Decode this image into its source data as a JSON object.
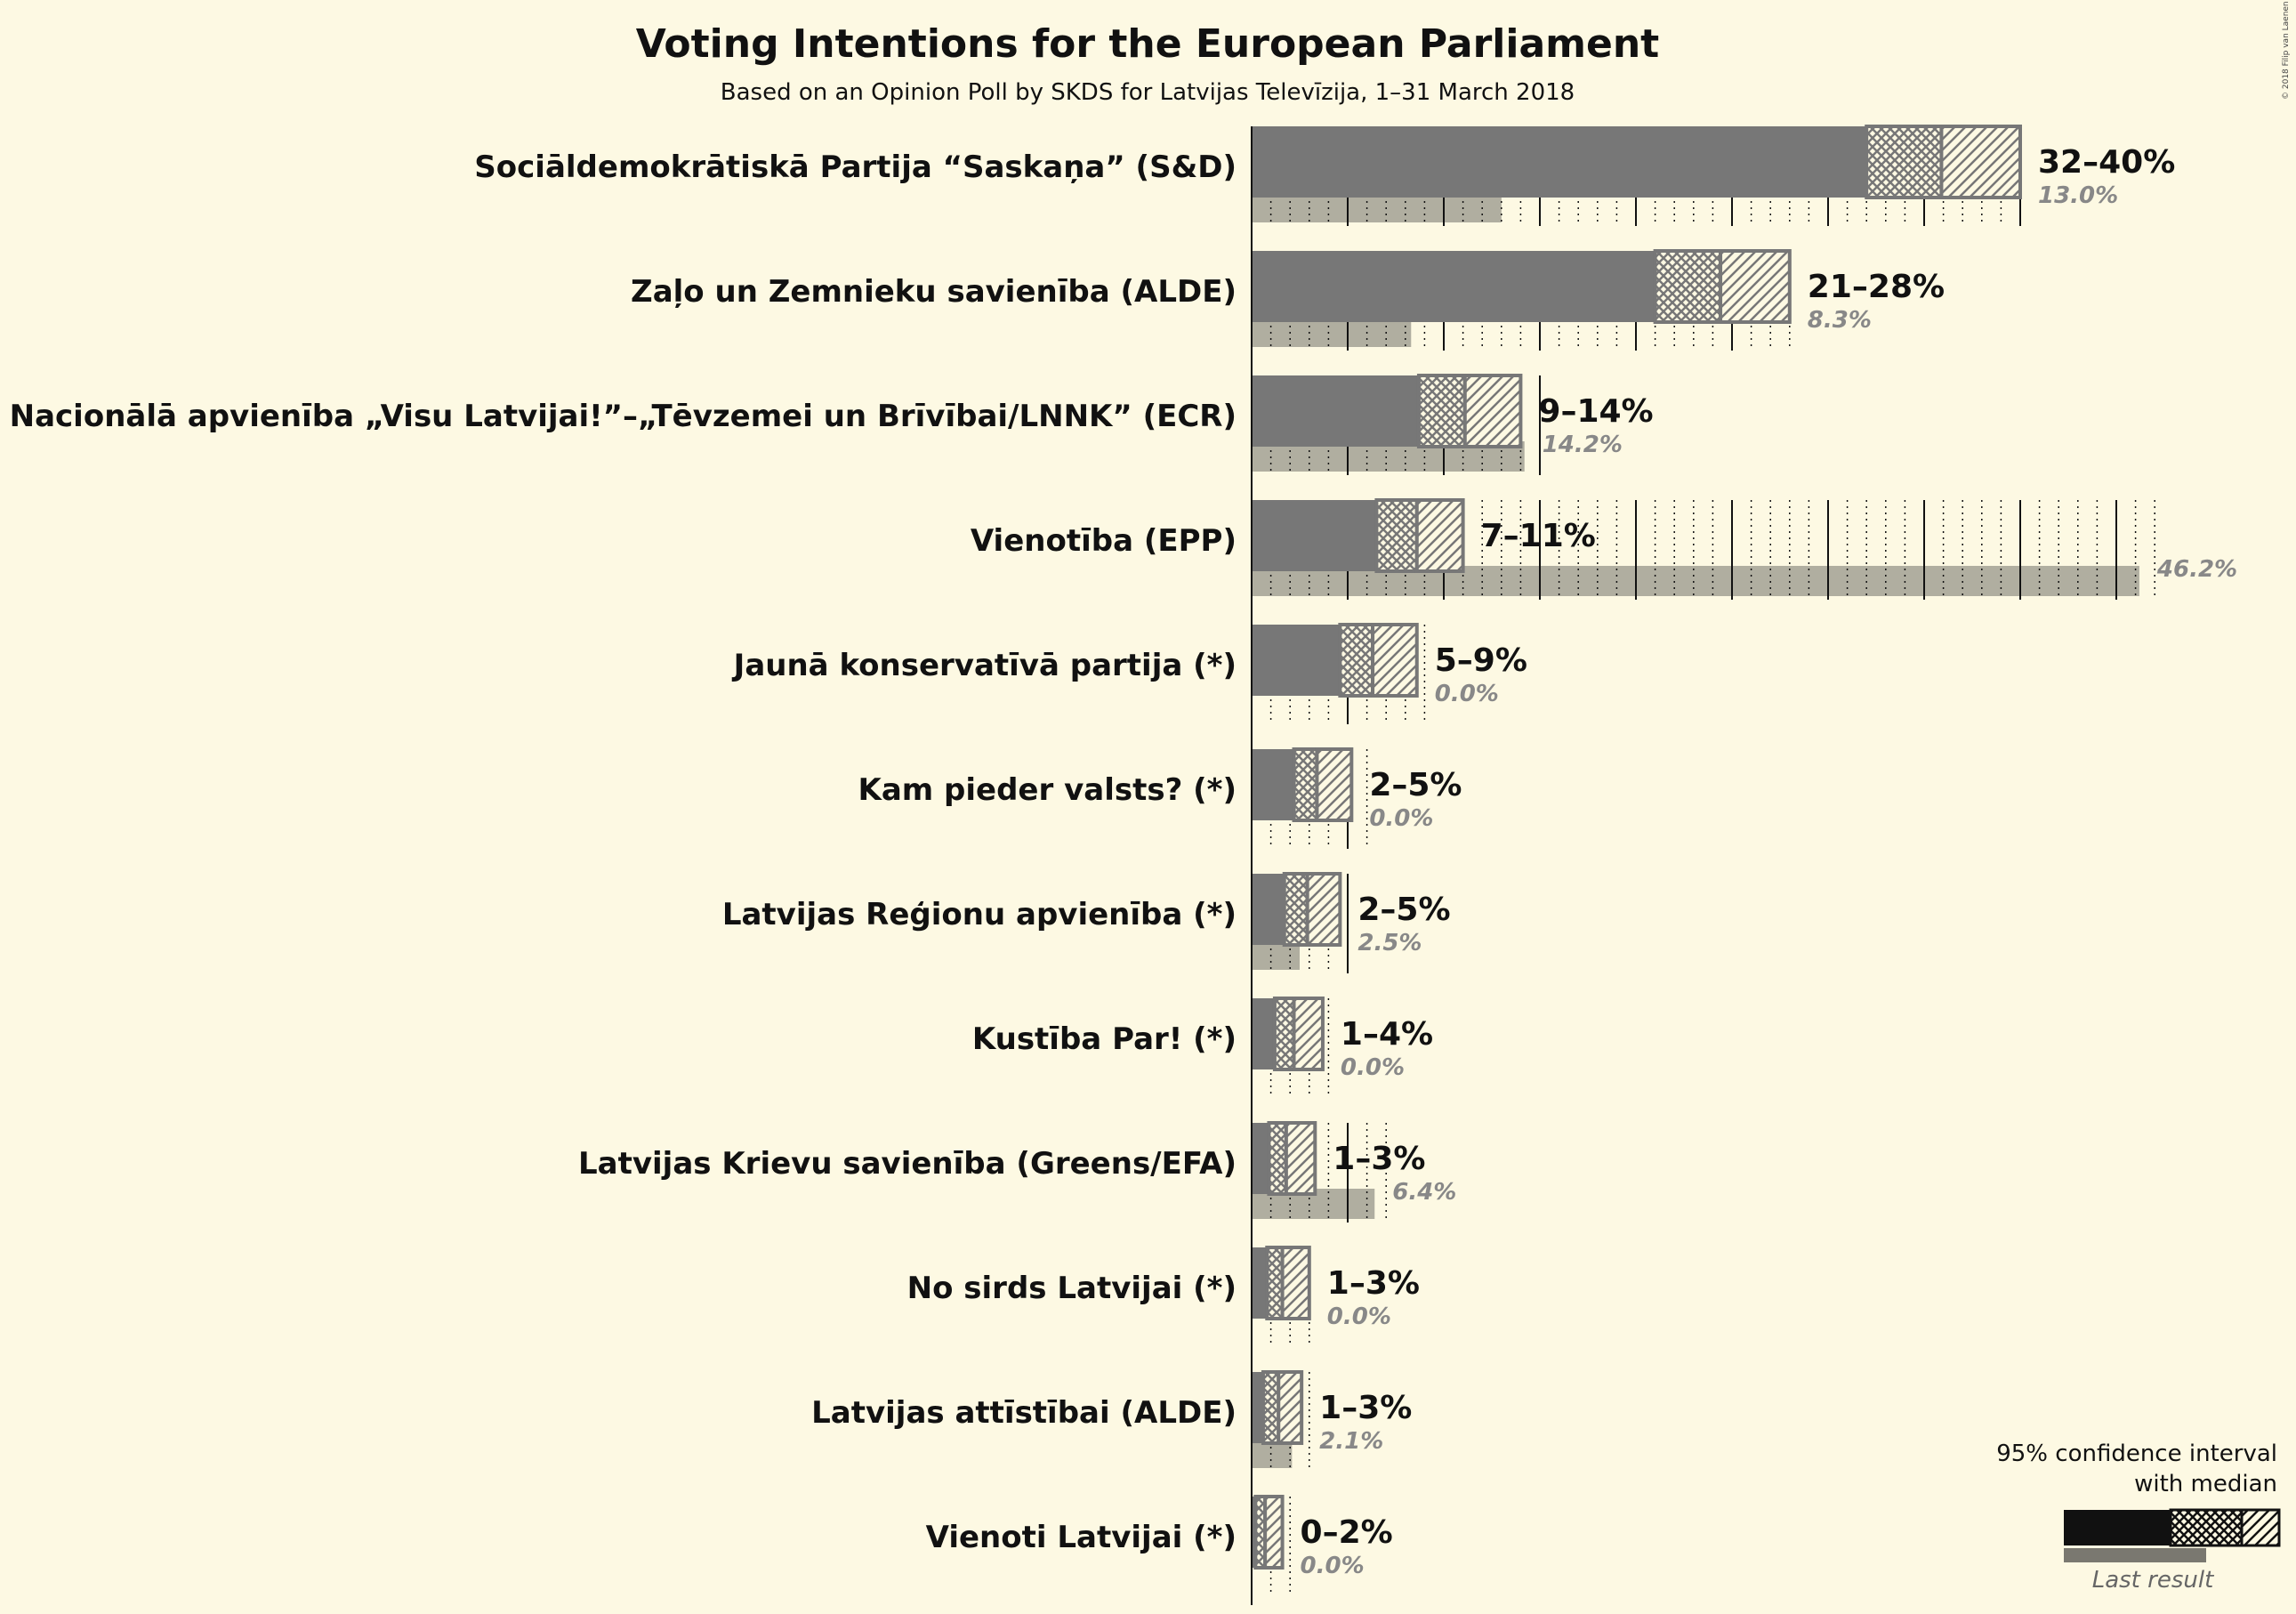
{
  "chart_data": {
    "type": "bar",
    "title": "Voting Intentions for the European Parliament",
    "subtitle": "Based on an Opinion Poll by SKDS for Latvijas Televīzija, 1–31 March 2018",
    "copyright": "© 2018 Filip van Laenen",
    "xlim": [
      0,
      46.2
    ],
    "categories": [
      "Sociāldemokrātiskā Partija “Saskaņa” (S&D)",
      "Zaļo un Zemnieku savienība (ALDE)",
      "Nacionālā apvienība „Visu Latvijai!”–„Tēvzemei un Brīvībai/LNNK” (ECR)",
      "Vienotība (EPP)",
      "Jaunā konservatīvā partija (*)",
      "Kam pieder valsts? (*)",
      "Latvijas Reģionu apvienība (*)",
      "Kustība Par! (*)",
      "Latvijas Krievu savienība (Greens/EFA)",
      "No sirds Latvijai (*)",
      "Latvijas attīstībai (ALDE)",
      "Vienoti Latvijai (*)"
    ],
    "series": [
      {
        "name": "95% confidence interval with median",
        "ci_low": [
          32,
          21,
          8.7,
          6.5,
          4.6,
          2.2,
          1.7,
          1.2,
          0.9,
          0.8,
          0.6,
          0.2
        ],
        "median": [
          35.9,
          24.4,
          11.1,
          8.6,
          6.3,
          3.4,
          2.9,
          2.2,
          1.8,
          1.6,
          1.4,
          0.7
        ],
        "ci_high": [
          40,
          28,
          14,
          11,
          8.6,
          5.2,
          4.6,
          3.7,
          3.3,
          3.0,
          2.6,
          1.6
        ],
        "range_labels": [
          "32–40%",
          "21–28%",
          "9–14%",
          "7–11%",
          "5–9%",
          "2–5%",
          "2–5%",
          "1–4%",
          "1–3%",
          "1–3%",
          "1–3%",
          "0–2%"
        ]
      },
      {
        "name": "Last result",
        "values": [
          13.0,
          8.3,
          14.2,
          46.2,
          0.0,
          0.0,
          2.5,
          0.0,
          6.4,
          0.0,
          2.1,
          0.0
        ],
        "labels": [
          "13.0%",
          "8.3%",
          "14.2%",
          "46.2%",
          "0.0%",
          "0.0%",
          "2.5%",
          "0.0%",
          "6.4%",
          "0.0%",
          "2.1%",
          "0.0%"
        ]
      }
    ],
    "legend": {
      "position": "bottom-right",
      "ci_label_line1": "95% confidence interval",
      "ci_label_line2": "with median",
      "last_label": "Last result"
    }
  },
  "colors": {
    "background": "#fdf9e3",
    "bar": "#777777",
    "bar_outline": "#777777",
    "last_result": "#b0aea0",
    "legend_bar": "#111111",
    "text": "#111111",
    "last_text": "#888888"
  }
}
